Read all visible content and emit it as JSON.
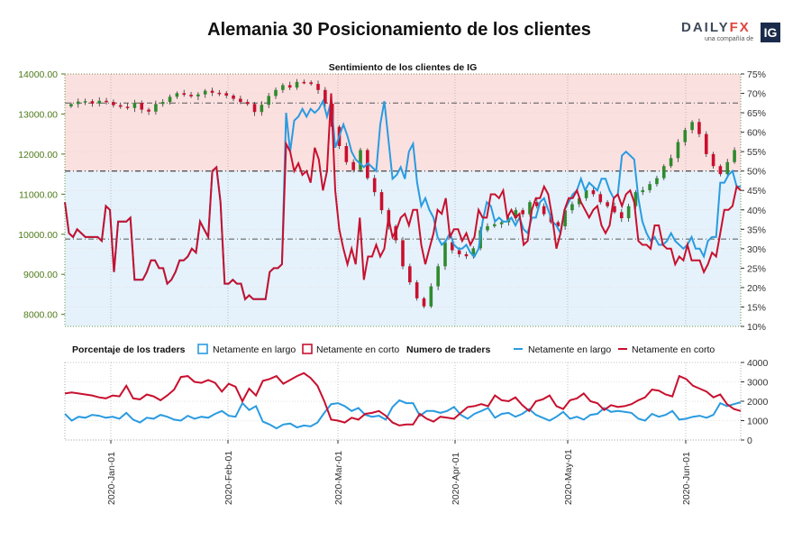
{
  "header": {
    "title": "Alemania 30 Posicionamiento de los clientes",
    "logo": {
      "brand_main": "DAILY",
      "brand_accent": "FX",
      "tagline": "una compañía de",
      "ig": "IG"
    }
  },
  "colors": {
    "long": "#2a9be0",
    "short": "#c8102e",
    "bull_candle": "#2e8b2e",
    "bear_candle": "#c8102e",
    "price_axis": "#4d7a1a",
    "upper_zone": "#fbe0e0",
    "lower_zone": "#e5f2fb"
  },
  "chart_data": [
    {
      "type": "line",
      "title": "Sentimiento de los clientes de IG",
      "x_tick_labels": [
        "2020-Jan-01",
        "2020-Feb-01",
        "2020-Mar-01",
        "2020-Apr-01",
        "2020-May-01",
        "2020-Jun-01"
      ],
      "left_axis": {
        "ylim": [
          7700,
          14000
        ],
        "ticks": [
          "8000.00",
          "9000.00",
          "10000.00",
          "11000.00",
          "12000.00",
          "13000.00",
          "14000.00"
        ]
      },
      "right_axis": {
        "ylim": [
          10,
          75
        ],
        "ticks": [
          "10%",
          "15%",
          "20%",
          "25%",
          "30%",
          "35%",
          "40%",
          "45%",
          "50%",
          "55%",
          "60%",
          "65%",
          "70%",
          "75%"
        ],
        "reference_lines": [
          32.5,
          50,
          67.5
        ]
      },
      "price_candles_close": [
        13250,
        13310,
        13320,
        13260,
        13330,
        13300,
        13220,
        13180,
        13150,
        13280,
        13110,
        13060,
        13250,
        13300,
        13430,
        13520,
        13480,
        13440,
        13490,
        13580,
        13530,
        13520,
        13460,
        13380,
        13300,
        13250,
        13050,
        13230,
        13450,
        13600,
        13720,
        13660,
        13800,
        13790,
        13750,
        13600,
        13260,
        12680,
        12200,
        11800,
        11600,
        12100,
        11400,
        11050,
        10600,
        10200,
        9850,
        9200,
        8800,
        8400,
        8200,
        8700,
        9200,
        9800,
        9600,
        9500,
        9450,
        9650,
        10100,
        10200,
        10250,
        10300,
        10400,
        10600,
        10500,
        10800,
        10700,
        10500,
        10300,
        10200,
        10600,
        10750,
        10900,
        11100,
        11000,
        10800,
        10700,
        10550,
        10400,
        10700,
        11050,
        11100,
        11250,
        11400,
        11700,
        11900,
        12300,
        12600,
        12800,
        12500,
        12000,
        11700,
        11500,
        11800,
        12100
      ],
      "series": [
        {
          "name": "Netamente en largo",
          "color": "long",
          "values": [
            42,
            34,
            33,
            35,
            34,
            33,
            33,
            33,
            33,
            32,
            41,
            40,
            24,
            37,
            37,
            37,
            38,
            22,
            22,
            22,
            24,
            27,
            27,
            25,
            25,
            21,
            22,
            24,
            27,
            27,
            28,
            30,
            29,
            37,
            35,
            33,
            50,
            51,
            42,
            21,
            21,
            22,
            21,
            21,
            17,
            18,
            17,
            17,
            17,
            17,
            24,
            25,
            25,
            26,
            65,
            55,
            63,
            64,
            66,
            64,
            66,
            65,
            66,
            68,
            64,
            68,
            56,
            59,
            62,
            59,
            55,
            53,
            52,
            51,
            52,
            51,
            50,
            62,
            68,
            58,
            48,
            49,
            51,
            48,
            55,
            57,
            47,
            41,
            43,
            40,
            38,
            33,
            31,
            32,
            34,
            31,
            30,
            30,
            31,
            29,
            28,
            30,
            37,
            42,
            41,
            37,
            38,
            37,
            37,
            38,
            36,
            38,
            35,
            34,
            38,
            38,
            42,
            43,
            40,
            37,
            36,
            34,
            40,
            42,
            44,
            45,
            48,
            45,
            47,
            46,
            45,
            48,
            48,
            45,
            43,
            44,
            54,
            55,
            54,
            53,
            43,
            37,
            34,
            32,
            33,
            31,
            31,
            32,
            34,
            32,
            31,
            30,
            31,
            33,
            30,
            30,
            28,
            32,
            33,
            33,
            47,
            47,
            49,
            50,
            46,
            46
          ]
        },
        {
          "name": "Netamente en corto",
          "color": "short",
          "values": [
            42,
            34,
            33,
            35,
            34,
            33,
            33,
            33,
            33,
            32,
            41,
            40,
            24,
            37,
            37,
            37,
            38,
            22,
            22,
            22,
            24,
            27,
            27,
            25,
            25,
            21,
            22,
            24,
            27,
            27,
            28,
            30,
            29,
            37,
            35,
            33,
            50,
            51,
            42,
            21,
            21,
            22,
            21,
            21,
            17,
            18,
            17,
            17,
            17,
            17,
            24,
            25,
            25,
            26,
            57,
            55,
            50,
            52,
            49,
            50,
            47,
            56,
            53,
            45,
            50,
            70,
            45,
            35,
            30,
            26,
            30,
            26,
            38,
            22,
            28,
            28,
            31,
            28,
            30,
            38,
            33,
            35,
            38,
            39,
            36,
            40,
            40,
            31,
            26,
            30,
            34,
            40,
            39,
            43,
            33,
            35,
            35,
            32,
            34,
            31,
            33,
            40,
            38,
            38,
            44,
            44,
            43,
            45,
            38,
            40,
            38,
            39,
            31,
            32,
            40,
            43,
            43,
            46,
            44,
            38,
            30,
            34,
            40,
            43,
            43,
            45,
            42,
            40,
            38,
            40,
            41,
            36,
            34,
            36,
            43,
            44,
            41,
            44,
            45,
            42,
            32,
            31,
            31,
            30,
            36,
            36,
            31,
            30,
            30,
            26,
            28,
            27,
            31,
            27,
            27,
            27,
            24,
            26,
            29,
            28,
            34,
            40,
            40,
            41,
            46,
            45
          ]
        }
      ],
      "legend": "top-center",
      "grid": true
    },
    {
      "type": "line",
      "title": "",
      "legend_group_labels": [
        "Porcentaje de los traders",
        "Numero de traders"
      ],
      "ylim": [
        0,
        4000
      ],
      "y_ticks": [
        "0",
        "1000",
        "2000",
        "3000",
        "4000"
      ],
      "series": [
        {
          "name": "Netamente en largo",
          "color": "long",
          "values": [
            1350,
            1000,
            1200,
            1150,
            1300,
            1250,
            1150,
            1200,
            1100,
            1400,
            1050,
            900,
            1150,
            1100,
            1300,
            1200,
            1050,
            1000,
            1250,
            1100,
            1200,
            1150,
            1350,
            1500,
            1250,
            1200,
            1900,
            1550,
            1750,
            950,
            800,
            600,
            800,
            850,
            650,
            750,
            700,
            900,
            1400,
            1850,
            1900,
            1750,
            1500,
            1650,
            1300,
            1200,
            1250,
            1050,
            1700,
            2050,
            1900,
            1900,
            1250,
            1500,
            1500,
            1400,
            1500,
            1700,
            1300,
            1100,
            1350,
            1500,
            1650,
            1150,
            1350,
            1400,
            1200,
            1350,
            1600,
            1300,
            1150,
            1000,
            1200,
            1450,
            1100,
            1200,
            1050,
            1300,
            1350,
            1650,
            1450,
            1500,
            1450,
            1400,
            1100,
            1000,
            1350,
            1200,
            1300,
            1500,
            1050,
            1100,
            1200,
            1250,
            1150,
            1300,
            1900,
            1750,
            1850,
            1950
          ]
        },
        {
          "name": "Netamente en corto",
          "color": "short",
          "values": [
            2400,
            2450,
            2400,
            2350,
            2300,
            2200,
            2150,
            2300,
            2250,
            2800,
            2150,
            2100,
            2350,
            2250,
            2050,
            2300,
            2600,
            3250,
            3300,
            3000,
            2950,
            3100,
            2950,
            2500,
            2900,
            2750,
            2000,
            2650,
            2300,
            3050,
            3150,
            3300,
            2900,
            3100,
            3300,
            3450,
            3200,
            2800,
            2000,
            1050,
            1000,
            900,
            1150,
            1050,
            1350,
            1400,
            1500,
            1250,
            900,
            750,
            800,
            800,
            1350,
            1100,
            950,
            1200,
            1150,
            1100,
            1400,
            1700,
            1750,
            1850,
            1750,
            2300,
            2050,
            2000,
            2200,
            1800,
            1500,
            2000,
            2100,
            2300,
            1750,
            1600,
            2050,
            2150,
            2400,
            2000,
            1900,
            1550,
            1800,
            1700,
            1750,
            1850,
            2050,
            2200,
            2600,
            2550,
            2350,
            2250,
            3300,
            3150,
            2800,
            2650,
            2500,
            2200,
            2350,
            1850,
            1600,
            1500
          ]
        }
      ],
      "x_tick_labels": [
        "2020-Jan-01",
        "2020-Feb-01",
        "2020-Mar-01",
        "2020-Apr-01",
        "2020-May-01",
        "2020-Jun-01"
      ],
      "grid": true
    }
  ]
}
